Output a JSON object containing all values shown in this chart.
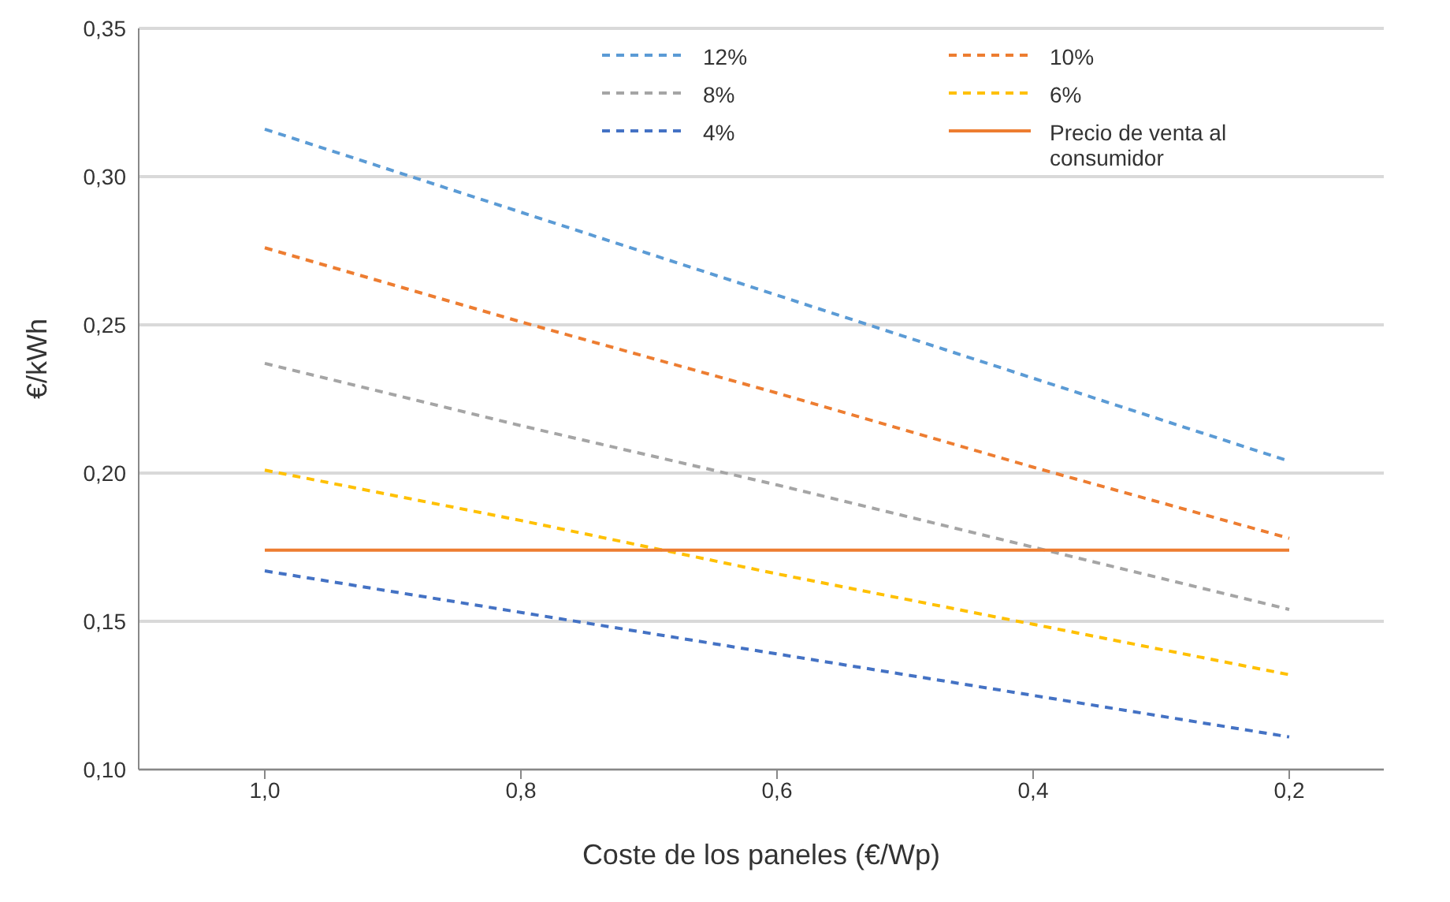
{
  "chart_data": {
    "type": "line",
    "xlabel": "Coste de los paneles (€/Wp)",
    "ylabel": "€/kWh",
    "categories": [
      "1,0",
      "0,8",
      "0,6",
      "0,4",
      "0,2"
    ],
    "series": [
      {
        "name": "12%",
        "color": "#5b9bd5",
        "line_style": "dashed",
        "values": [
          0.316,
          0.288,
          0.26,
          0.232,
          0.204
        ]
      },
      {
        "name": "10%",
        "color": "#ed7d31",
        "line_style": "dashed",
        "values": [
          0.276,
          0.251,
          0.227,
          0.202,
          0.178
        ]
      },
      {
        "name": "8%",
        "color": "#a5a5a5",
        "line_style": "dashed",
        "values": [
          0.237,
          0.216,
          0.196,
          0.175,
          0.154
        ]
      },
      {
        "name": "6%",
        "color": "#ffc000",
        "line_style": "dashed",
        "values": [
          0.201,
          0.184,
          0.166,
          0.149,
          0.132
        ]
      },
      {
        "name": "4%",
        "color": "#4472c4",
        "line_style": "dashed",
        "values": [
          0.167,
          0.153,
          0.139,
          0.125,
          0.111
        ]
      },
      {
        "name": "Precio de venta al consumidor",
        "color": "#ed7d31",
        "line_style": "solid",
        "values": [
          0.174,
          0.174,
          0.174,
          0.174,
          0.174
        ]
      }
    ],
    "ylim": [
      0.1,
      0.35
    ],
    "yticks": [
      {
        "value": 0.1,
        "label": "0,10"
      },
      {
        "value": 0.15,
        "label": "0,15"
      },
      {
        "value": 0.2,
        "label": "0,20"
      },
      {
        "value": 0.25,
        "label": "0,25"
      },
      {
        "value": 0.3,
        "label": "0,30"
      },
      {
        "value": 0.35,
        "label": "0,35"
      }
    ],
    "grid": "y",
    "legend": "top",
    "marker": "none"
  }
}
